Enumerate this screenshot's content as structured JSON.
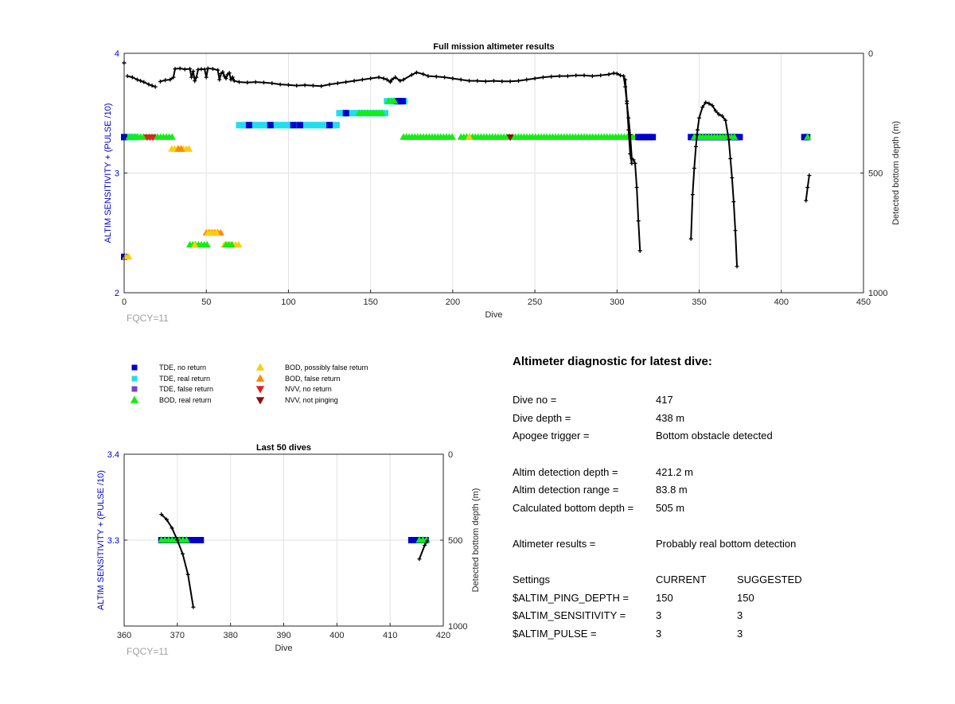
{
  "colors": {
    "tde_no_return": "#0000cc",
    "tde_real_return": "#22ddee",
    "tde_false_return": "#7744cc",
    "bod_real_return": "#11ee11",
    "bod_possibly_false": "#ffcc11",
    "bod_false": "#ff8800",
    "nvv_no_return": "#dd2222",
    "nvv_not_pinging": "#881111",
    "depth_line": "#000000"
  },
  "legend": [
    {
      "key": "tde_no_return",
      "label": "TDE, no return",
      "marker": "square"
    },
    {
      "key": "tde_real_return",
      "label": "TDE, real return",
      "marker": "square"
    },
    {
      "key": "tde_false_return",
      "label": "TDE, false return",
      "marker": "square"
    },
    {
      "key": "bod_real_return",
      "label": "BOD, real return",
      "marker": "triangle-up"
    },
    {
      "key": "bod_possibly_false",
      "label": "BOD, possibly false return",
      "marker": "triangle-up"
    },
    {
      "key": "bod_false",
      "label": "BOD, false return",
      "marker": "triangle-up"
    },
    {
      "key": "nvv_no_return",
      "label": "NVV, no return",
      "marker": "triangle-down"
    },
    {
      "key": "nvv_not_pinging",
      "label": "NVV, not pinging",
      "marker": "triangle-down"
    }
  ],
  "chart_data": [
    {
      "type": "scatter",
      "title": "Full mission altimeter results",
      "xlabel": "Dive",
      "ylabel": "ALTIM SENSITIVITY + (PULSE /10)",
      "ylabel_right": "Detected bottom depth (m)",
      "xlim": [
        0,
        450
      ],
      "ylim": [
        2,
        4
      ],
      "ylim_right": [
        1000,
        0
      ],
      "xticks": [
        "0",
        "50",
        "100",
        "150",
        "200",
        "250",
        "300",
        "350",
        "400",
        "450"
      ],
      "yticks": [
        "2",
        "3",
        "4"
      ],
      "yticks_right": [
        "1000",
        "500",
        "0"
      ],
      "annotation": "FQCY=11",
      "grid": true,
      "marker_runs": [
        {
          "series": "tde_real_return",
          "y": 3.3,
          "x_start": 0,
          "x_end": 8
        },
        {
          "series": "tde_no_return",
          "y": 3.3,
          "x_start": 0,
          "x_end": 1
        },
        {
          "series": "bod_real_return",
          "y": 3.3,
          "x_start": 3,
          "x_end": 30
        },
        {
          "series": "nvv_no_return",
          "y": 3.3,
          "x_start": 14,
          "x_end": 19
        },
        {
          "series": "bod_possibly_false",
          "y": 3.2,
          "x_start": 29,
          "x_end": 40
        },
        {
          "series": "bod_false",
          "y": 3.2,
          "x_start": 33,
          "x_end": 35
        },
        {
          "series": "tde_real_return",
          "y": 3.4,
          "x_start": 70,
          "x_end": 131
        },
        {
          "series": "tde_no_return",
          "y": 3.4,
          "x_start": 76,
          "x_end": 76
        },
        {
          "series": "tde_no_return",
          "y": 3.4,
          "x_start": 89,
          "x_end": 89
        },
        {
          "series": "tde_no_return",
          "y": 3.4,
          "x_start": 103,
          "x_end": 103
        },
        {
          "series": "tde_no_return",
          "y": 3.4,
          "x_start": 107,
          "x_end": 107
        },
        {
          "series": "tde_no_return",
          "y": 3.4,
          "x_start": 125,
          "x_end": 125
        },
        {
          "series": "tde_real_return",
          "y": 3.5,
          "x_start": 131,
          "x_end": 160
        },
        {
          "series": "tde_no_return",
          "y": 3.5,
          "x_start": 135,
          "x_end": 135
        },
        {
          "series": "bod_real_return",
          "y": 3.5,
          "x_start": 143,
          "x_end": 158
        },
        {
          "series": "tde_real_return",
          "y": 3.6,
          "x_start": 160,
          "x_end": 171
        },
        {
          "series": "tde_no_return",
          "y": 3.6,
          "x_start": 166,
          "x_end": 171
        },
        {
          "series": "bod_real_return",
          "y": 3.6,
          "x_start": 161,
          "x_end": 166
        },
        {
          "series": "bod_real_return",
          "y": 3.3,
          "x_start": 170,
          "x_end": 201
        },
        {
          "series": "bod_real_return",
          "y": 3.3,
          "x_start": 205,
          "x_end": 313
        },
        {
          "series": "bod_possibly_false",
          "y": 3.3,
          "x_start": 210,
          "x_end": 211
        },
        {
          "series": "nvv_not_pinging",
          "y": 3.3,
          "x_start": 235,
          "x_end": 235
        },
        {
          "series": "tde_no_return",
          "y": 3.3,
          "x_start": 313,
          "x_end": 323
        },
        {
          "series": "tde_no_return",
          "y": 3.3,
          "x_start": 345,
          "x_end": 375
        },
        {
          "series": "bod_real_return",
          "y": 3.3,
          "x_start": 347,
          "x_end": 372
        },
        {
          "series": "tde_no_return",
          "y": 3.3,
          "x_start": 414,
          "x_end": 417
        },
        {
          "series": "bod_real_return",
          "y": 3.3,
          "x_start": 416,
          "x_end": 417
        },
        {
          "series": "tde_no_return",
          "y": 2.3,
          "x_start": 0,
          "x_end": 1
        },
        {
          "series": "bod_possibly_false",
          "y": 2.3,
          "x_start": 1,
          "x_end": 3
        },
        {
          "series": "bod_real_return",
          "y": 2.4,
          "x_start": 40,
          "x_end": 52
        },
        {
          "series": "bod_possibly_false",
          "y": 2.4,
          "x_start": 43,
          "x_end": 44
        },
        {
          "series": "bod_possibly_false",
          "y": 2.4,
          "x_start": 61,
          "x_end": 70
        },
        {
          "series": "bod_real_return",
          "y": 2.4,
          "x_start": 62,
          "x_end": 67
        },
        {
          "series": "bod_false",
          "y": 2.5,
          "x_start": 50,
          "x_end": 60
        },
        {
          "series": "bod_possibly_false",
          "y": 2.5,
          "x_start": 51,
          "x_end": 57
        }
      ],
      "bottom_depth_segments": [
        [
          [
            0,
            40
          ],
          [
            0,
            40
          ]
        ],
        [
          [
            2,
            95
          ],
          [
            5,
            100
          ],
          [
            8,
            110
          ],
          [
            10,
            115
          ],
          [
            12,
            120
          ],
          [
            15,
            130
          ],
          [
            17,
            135
          ],
          [
            19,
            140
          ]
        ],
        [
          [
            22,
            118
          ],
          [
            25,
            112
          ],
          [
            28,
            110
          ],
          [
            30,
            100
          ],
          [
            31,
            65
          ],
          [
            34,
            63
          ],
          [
            37,
            67
          ],
          [
            40,
            65
          ],
          [
            41,
            100
          ],
          [
            42,
            75
          ],
          [
            43,
            115
          ],
          [
            44,
            100
          ],
          [
            45,
            68
          ],
          [
            47,
            66
          ],
          [
            49,
            67
          ],
          [
            50,
            100
          ],
          [
            51,
            63
          ],
          [
            54,
            65
          ],
          [
            57,
            70
          ],
          [
            58,
            110
          ],
          [
            59,
            85
          ],
          [
            60,
            78
          ],
          [
            61,
            95
          ],
          [
            62,
            105
          ],
          [
            63,
            88
          ],
          [
            64,
            82
          ],
          [
            65,
            110
          ],
          [
            66,
            100
          ],
          [
            67,
            115
          ],
          [
            70,
            120
          ],
          [
            75,
            122
          ],
          [
            80,
            120
          ],
          [
            85,
            122
          ],
          [
            90,
            125
          ],
          [
            95,
            130
          ],
          [
            100,
            132
          ],
          [
            105,
            135
          ],
          [
            110,
            133
          ],
          [
            115,
            135
          ],
          [
            120,
            137
          ],
          [
            125,
            130
          ],
          [
            130,
            125
          ],
          [
            135,
            120
          ],
          [
            140,
            115
          ],
          [
            145,
            110
          ],
          [
            150,
            105
          ],
          [
            155,
            100
          ],
          [
            158,
            105
          ],
          [
            160,
            110
          ],
          [
            162,
            120
          ],
          [
            163,
            110
          ],
          [
            165,
            100
          ],
          [
            168,
            115
          ],
          [
            170,
            110
          ],
          [
            175,
            90
          ],
          [
            178,
            80
          ],
          [
            182,
            87
          ],
          [
            185,
            95
          ],
          [
            190,
            97
          ],
          [
            195,
            100
          ],
          [
            200,
            105
          ],
          [
            205,
            110
          ],
          [
            210,
            115
          ],
          [
            215,
            115
          ],
          [
            220,
            117
          ],
          [
            225,
            115
          ],
          [
            230,
            117
          ],
          [
            235,
            117
          ],
          [
            240,
            115
          ],
          [
            245,
            110
          ],
          [
            250,
            105
          ],
          [
            255,
            100
          ],
          [
            260,
            97
          ],
          [
            265,
            95
          ],
          [
            270,
            95
          ],
          [
            275,
            92
          ],
          [
            280,
            92
          ],
          [
            285,
            95
          ],
          [
            290,
            92
          ],
          [
            295,
            88
          ],
          [
            298,
            83
          ],
          [
            300,
            85
          ],
          [
            302,
            92
          ],
          [
            304,
            95
          ],
          [
            305,
            140
          ],
          [
            306,
            210
          ],
          [
            307,
            270
          ],
          [
            308,
            340
          ],
          [
            309,
            440
          ],
          [
            310,
            445
          ],
          [
            311,
            460
          ],
          [
            312,
            560
          ],
          [
            313,
            700
          ],
          [
            314,
            825
          ]
        ],
        [
          [
            305,
            110
          ],
          [
            306,
            200
          ],
          [
            307,
            320
          ],
          [
            308,
            420
          ],
          [
            309,
            460
          ]
        ],
        [
          [
            345,
            775
          ],
          [
            346,
            590
          ],
          [
            347,
            480
          ],
          [
            348,
            390
          ],
          [
            349,
            320
          ],
          [
            350,
            270
          ],
          [
            352,
            225
          ],
          [
            354,
            205
          ],
          [
            356,
            210
          ],
          [
            358,
            218
          ],
          [
            360,
            240
          ],
          [
            362,
            255
          ],
          [
            364,
            262
          ],
          [
            366,
            280
          ],
          [
            368,
            360
          ],
          [
            369,
            440
          ],
          [
            370,
            520
          ],
          [
            371,
            620
          ],
          [
            372,
            740
          ],
          [
            373,
            890
          ]
        ],
        [
          [
            415,
            615
          ],
          [
            416,
            560
          ],
          [
            417,
            510
          ]
        ]
      ]
    },
    {
      "type": "scatter",
      "title": "Last 50 dives",
      "xlabel": "Dive",
      "ylabel": "ALTIM SENSITIVITY + (PULSE /10)",
      "ylabel_right": "Detected bottom depth (m)",
      "xlim": [
        360,
        420
      ],
      "ylim": [
        3.2,
        3.4
      ],
      "ylim_right": [
        1000,
        0
      ],
      "xticks": [
        "360",
        "370",
        "380",
        "390",
        "400",
        "410",
        "420"
      ],
      "yticks": [
        "3.3",
        "3.4"
      ],
      "yticks_right": [
        "1000",
        "500",
        "0"
      ],
      "annotation": "FQCY=11",
      "grid": true,
      "marker_runs": [
        {
          "series": "tde_no_return",
          "y": 3.3,
          "x_start": 367,
          "x_end": 375
        },
        {
          "series": "bod_real_return",
          "y": 3.3,
          "x_start": 367,
          "x_end": 372
        },
        {
          "series": "tde_no_return",
          "y": 3.3,
          "x_start": 414,
          "x_end": 417
        },
        {
          "series": "bod_real_return",
          "y": 3.3,
          "x_start": 415.5,
          "x_end": 417
        }
      ],
      "bottom_depth_segments": [
        [
          [
            367,
            350
          ],
          [
            368,
            380
          ],
          [
            369,
            430
          ],
          [
            370,
            500
          ],
          [
            371,
            580
          ],
          [
            372,
            700
          ],
          [
            373,
            890
          ]
        ],
        [
          [
            415.5,
            610
          ],
          [
            416.5,
            530
          ],
          [
            417,
            505
          ]
        ]
      ]
    }
  ],
  "diagnostic": {
    "heading": "Altimeter diagnostic for latest dive:",
    "rows": [
      {
        "label": "Dive no =",
        "value": "417",
        "value2": ""
      },
      {
        "label": "Dive depth =",
        "value": "438 m",
        "value2": ""
      },
      {
        "label": "Apogee trigger =",
        "value": "Bottom obstacle detected",
        "value2": ""
      },
      {
        "label": "Altim detection depth =",
        "value": "421.2 m",
        "value2": ""
      },
      {
        "label": "Altim detection range =",
        "value": "83.8 m",
        "value2": ""
      },
      {
        "label": "Calculated bottom depth =",
        "value": "505 m",
        "value2": ""
      },
      {
        "label": "Altimeter results =",
        "value": "Probably real bottom detection",
        "value2": ""
      },
      {
        "label": "Settings",
        "value": "CURRENT",
        "value2": "SUGGESTED"
      },
      {
        "label": "$ALTIM_PING_DEPTH =",
        "value": "150",
        "value2": "150"
      },
      {
        "label": "$ALTIM_SENSITIVITY =",
        "value": "3",
        "value2": "3"
      },
      {
        "label": "$ALTIM_PULSE =",
        "value": "3",
        "value2": "3"
      }
    ]
  }
}
